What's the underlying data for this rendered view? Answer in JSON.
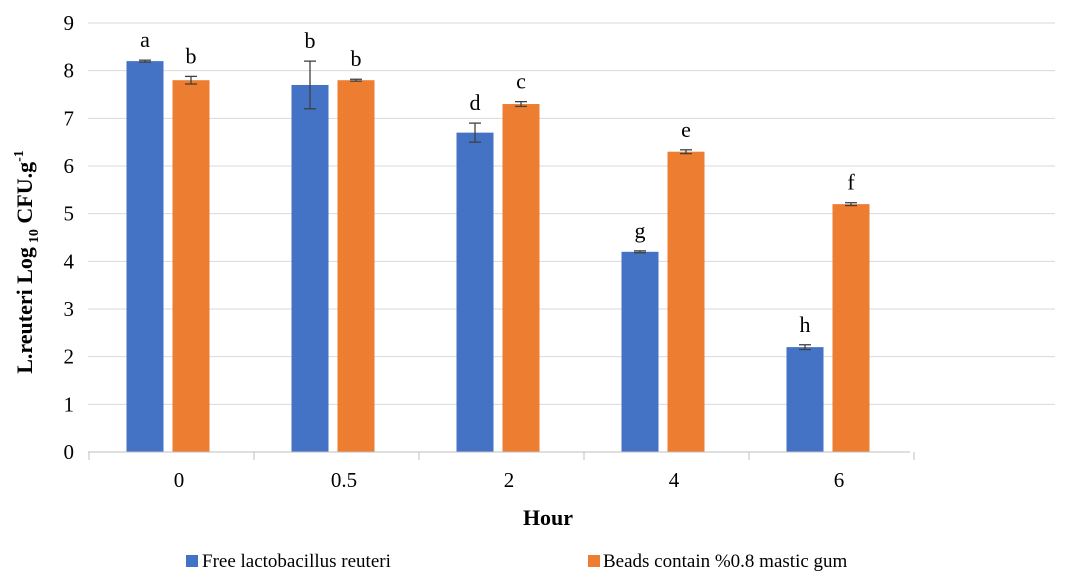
{
  "chart_data": {
    "type": "bar",
    "categories": [
      "0",
      "0.5",
      "2",
      "4",
      "6"
    ],
    "series": [
      {
        "name": "Free lactobacillus reuteri",
        "color": "#4472C4",
        "values": [
          8.2,
          7.7,
          6.7,
          4.2,
          2.2
        ],
        "errors": [
          0.02,
          0.5,
          0.2,
          0.02,
          0.05
        ],
        "labels": [
          "a",
          "b",
          "d",
          "g",
          "h"
        ]
      },
      {
        "name": "Beads contain %0.8 mastic gum",
        "color": "#ED7D31",
        "values": [
          7.8,
          7.8,
          7.3,
          6.3,
          5.2
        ],
        "errors": [
          0.08,
          0.02,
          0.05,
          0.04,
          0.03
        ],
        "labels": [
          "b",
          "b",
          "c",
          "e",
          "f"
        ]
      }
    ],
    "xlabel": "Hour",
    "ylabel": {
      "pre": "L.reuteri Log",
      "sub": "10",
      "mid": " CFU.g",
      "sup": "-1"
    },
    "ylim": [
      0,
      9
    ],
    "yticks": [
      0,
      1,
      2,
      3,
      4,
      5,
      6,
      7,
      8,
      9
    ],
    "grid": true,
    "legend_position": "bottom"
  }
}
